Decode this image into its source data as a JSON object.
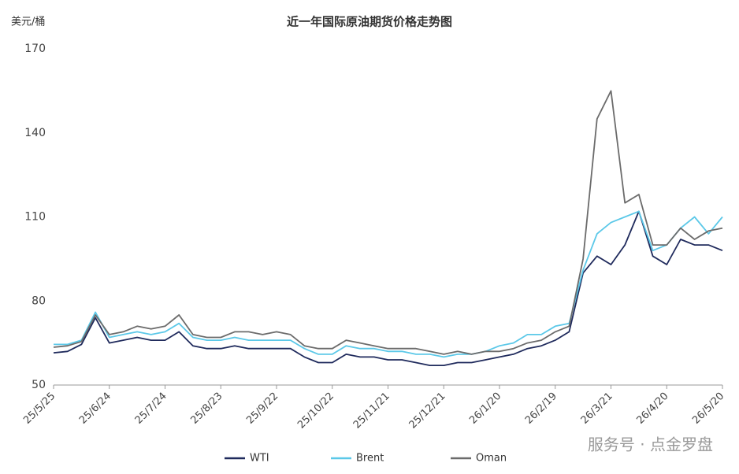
{
  "chart_data": {
    "type": "line",
    "title": "近一年国际原油期货价格走势图",
    "y_label": "美元/桶",
    "watermark": "服务号 · 点金罗盘",
    "categories": [
      "25/5/25",
      null,
      null,
      null,
      "25/6/24",
      null,
      null,
      null,
      "25/7/24",
      null,
      null,
      null,
      "25/8/23",
      null,
      null,
      null,
      "25/9/22",
      null,
      null,
      null,
      "25/10/22",
      null,
      null,
      null,
      "25/11/21",
      null,
      null,
      null,
      "25/12/21",
      null,
      null,
      null,
      "26/1/20",
      null,
      null,
      null,
      "26/2/19",
      null,
      null,
      null,
      "26/3/21",
      null,
      null,
      null,
      "26/4/20",
      null,
      null,
      null,
      "26/5/20"
    ],
    "series": [
      {
        "name": "WTI",
        "color": "#1f2a5c",
        "values": [
          61.5,
          62,
          64.5,
          74,
          65,
          66,
          67,
          66,
          66,
          69,
          64,
          63,
          63,
          64,
          63,
          63,
          63,
          63,
          60,
          58,
          58,
          61,
          60,
          60,
          59,
          59,
          58,
          57,
          57,
          58,
          58,
          59,
          60,
          61,
          63,
          64,
          66,
          69,
          90,
          96,
          93,
          100,
          112,
          96,
          93,
          102,
          100,
          100,
          98
        ]
      },
      {
        "name": "Brent",
        "color": "#5bc8e8",
        "values": [
          64.5,
          64.5,
          66,
          76,
          67,
          68,
          69,
          68,
          69,
          72,
          67,
          66,
          66,
          67,
          66,
          66,
          66,
          66,
          63,
          61,
          61,
          64,
          63,
          63,
          62,
          62,
          61,
          61,
          60,
          61,
          61,
          62,
          64,
          65,
          68,
          68,
          71,
          72,
          91,
          104,
          108,
          110,
          112,
          98,
          100,
          106,
          110,
          104,
          110
        ]
      },
      {
        "name": "Oman",
        "color": "#6b6b6b",
        "values": [
          63.5,
          64,
          65.5,
          75,
          68,
          69,
          71,
          70,
          71,
          75,
          68,
          67,
          67,
          69,
          69,
          68,
          69,
          68,
          64,
          63,
          63,
          66,
          65,
          64,
          63,
          63,
          63,
          62,
          61,
          62,
          61,
          62,
          62,
          63,
          65,
          66,
          69,
          71,
          95,
          145,
          155,
          115,
          118,
          100,
          100,
          106,
          102,
          105,
          106
        ]
      }
    ],
    "ylim": [
      50,
      170
    ],
    "yticks": [
      50,
      80,
      110,
      140,
      170
    ],
    "grid": false,
    "legend": "bottom"
  }
}
